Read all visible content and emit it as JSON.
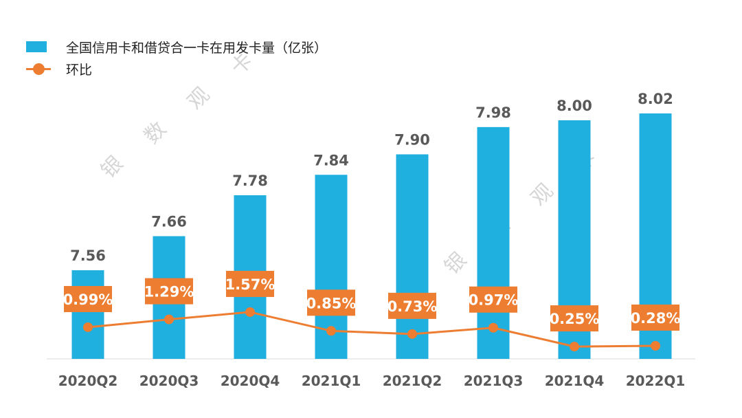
{
  "chart_data": {
    "type": "bar+line",
    "categories": [
      "2020Q2",
      "2020Q3",
      "2020Q4",
      "2021Q1",
      "2021Q2",
      "2021Q3",
      "2021Q4",
      "2022Q1"
    ],
    "series": [
      {
        "name": "全国信用卡和借贷合一卡在用发卡量（亿张）",
        "type": "bar",
        "color": "#1fb0e0",
        "values": [
          7.56,
          7.66,
          7.78,
          7.84,
          7.9,
          7.98,
          8.0,
          8.02
        ],
        "labels": [
          "7.56",
          "7.66",
          "7.78",
          "7.84",
          "7.90",
          "7.98",
          "8.00",
          "8.02"
        ]
      },
      {
        "name": "环比",
        "type": "line",
        "color": "#ed7d31",
        "values": [
          0.99,
          1.29,
          1.57,
          0.85,
          0.73,
          0.97,
          0.25,
          0.28
        ],
        "labels": [
          "0.99%",
          "1.29%",
          "1.57%",
          "0.85%",
          "0.73%",
          "0.97%",
          "0.25%",
          "0.28%"
        ]
      }
    ],
    "ylim_bar": [
      7.3,
      8.1
    ],
    "ylim_line": [
      0,
      12
    ],
    "grid": false,
    "legend_position": "top-left",
    "watermark": "银数观卡"
  }
}
